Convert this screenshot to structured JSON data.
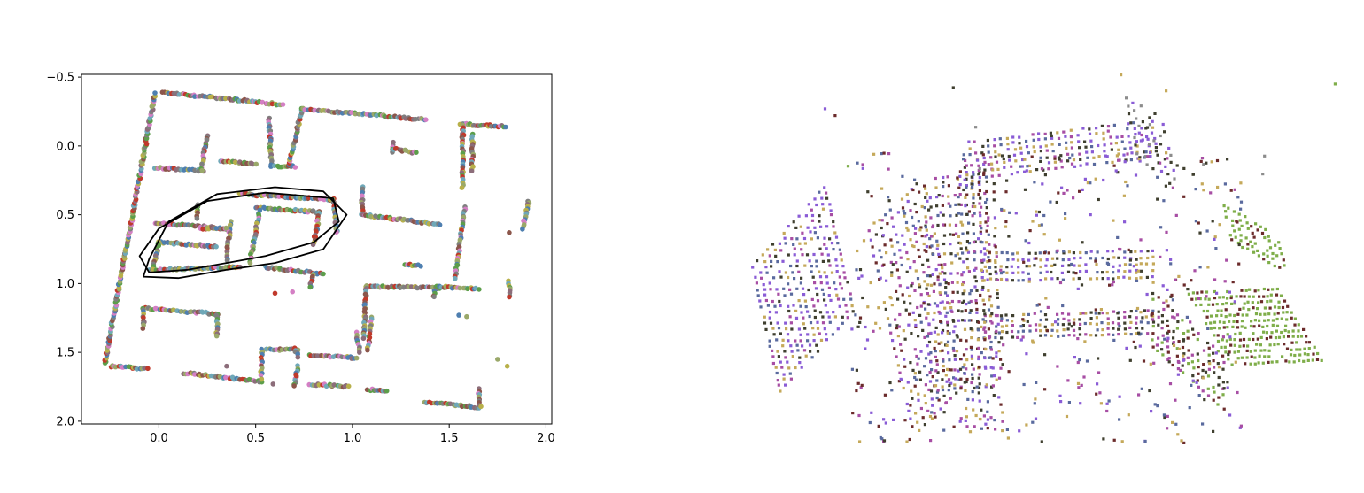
{
  "chart_data": [
    {
      "type": "scatter",
      "title": "",
      "xlabel": "",
      "ylabel": "",
      "xlim": [
        -0.4,
        2.03
      ],
      "ylim": [
        2.02,
        -0.52
      ],
      "y_inverted": true,
      "grid": false,
      "legend": "none",
      "x_ticks": [
        {
          "value": 0.0,
          "label": "0.0"
        },
        {
          "value": 0.5,
          "label": "0.5"
        },
        {
          "value": 1.0,
          "label": "1.0"
        },
        {
          "value": 1.5,
          "label": "1.5"
        },
        {
          "value": 2.0,
          "label": "2.0"
        }
      ],
      "y_ticks": [
        {
          "value": -0.5,
          "label": "−0.5"
        },
        {
          "value": 0.0,
          "label": "0.0"
        },
        {
          "value": 0.5,
          "label": "0.5"
        },
        {
          "value": 1.0,
          "label": "1.0"
        },
        {
          "value": 1.5,
          "label": "1.5"
        },
        {
          "value": 2.0,
          "label": "2.0"
        }
      ],
      "point_colors": [
        "#7f7f7f",
        "#8c6d7a",
        "#6fa8b8",
        "#b8b04a",
        "#d47fc4",
        "#4e7fb0",
        "#5c9e4a",
        "#c0392b",
        "#8c564b",
        "#9aa86a"
      ],
      "wall_segments": [
        [
          [
            -0.28,
            1.58
          ],
          [
            -0.02,
            -0.38
          ]
        ],
        [
          [
            0.02,
            -0.39
          ],
          [
            0.64,
            -0.3
          ]
        ],
        [
          [
            -0.25,
            1.6
          ],
          [
            -0.06,
            1.62
          ]
        ],
        [
          [
            -0.02,
            0.16
          ],
          [
            0.23,
            0.18
          ]
        ],
        [
          [
            0.25,
            -0.08
          ],
          [
            0.22,
            0.18
          ]
        ],
        [
          [
            0.32,
            0.11
          ],
          [
            0.5,
            0.13
          ]
        ],
        [
          [
            0.57,
            -0.2
          ],
          [
            0.58,
            0.15
          ]
        ],
        [
          [
            0.6,
            0.15
          ],
          [
            0.7,
            0.15
          ]
        ],
        [
          [
            0.67,
            0.15
          ],
          [
            0.74,
            -0.27
          ]
        ],
        [
          [
            0.74,
            -0.27
          ],
          [
            1.38,
            -0.19
          ]
        ],
        [
          [
            1.21,
            -0.02
          ],
          [
            1.21,
            0.04
          ]
        ],
        [
          [
            1.21,
            0.02
          ],
          [
            1.33,
            0.05
          ]
        ],
        [
          [
            1.56,
            -0.16
          ],
          [
            1.79,
            -0.14
          ]
        ],
        [
          [
            1.57,
            -0.15
          ],
          [
            1.57,
            0.3
          ]
        ],
        [
          [
            1.62,
            -0.08
          ],
          [
            1.62,
            0.18
          ]
        ],
        [
          [
            1.05,
            0.3
          ],
          [
            1.05,
            0.5
          ]
        ],
        [
          [
            1.05,
            0.5
          ],
          [
            1.45,
            0.57
          ]
        ],
        [
          [
            0.42,
            0.35
          ],
          [
            0.9,
            0.39
          ]
        ],
        [
          [
            0.9,
            0.39
          ],
          [
            0.92,
            0.63
          ]
        ],
        [
          [
            0.2,
            0.42
          ],
          [
            0.2,
            0.53
          ]
        ],
        [
          [
            -0.02,
            0.56
          ],
          [
            0.35,
            0.6
          ]
        ],
        [
          [
            0.5,
            0.45
          ],
          [
            0.83,
            0.48
          ]
        ],
        [
          [
            0.83,
            0.48
          ],
          [
            0.8,
            0.71
          ]
        ],
        [
          [
            0.52,
            0.47
          ],
          [
            0.47,
            0.85
          ]
        ],
        [
          [
            0.37,
            0.55
          ],
          [
            0.35,
            0.83
          ]
        ],
        [
          [
            0.22,
            0.6
          ],
          [
            0.35,
            0.6
          ]
        ],
        [
          [
            0.01,
            0.7
          ],
          [
            0.3,
            0.73
          ]
        ],
        [
          [
            0.0,
            0.7
          ],
          [
            -0.03,
            0.87
          ]
        ],
        [
          [
            -0.05,
            0.9
          ],
          [
            0.42,
            0.88
          ]
        ],
        [
          [
            0.55,
            0.88
          ],
          [
            0.85,
            0.93
          ]
        ],
        [
          [
            0.8,
            0.93
          ],
          [
            0.78,
            1.03
          ]
        ],
        [
          [
            1.27,
            0.86
          ],
          [
            1.35,
            0.87
          ]
        ],
        [
          [
            1.58,
            0.45
          ],
          [
            1.53,
            0.97
          ]
        ],
        [
          [
            1.91,
            0.4
          ],
          [
            1.88,
            0.6
          ]
        ],
        [
          [
            1.07,
            1.02
          ],
          [
            1.45,
            1.03
          ]
        ],
        [
          [
            1.07,
            1.02
          ],
          [
            1.06,
            1.4
          ]
        ],
        [
          [
            1.1,
            1.25
          ],
          [
            1.08,
            1.48
          ]
        ],
        [
          [
            1.43,
            1.04
          ],
          [
            1.42,
            1.1
          ]
        ],
        [
          [
            1.43,
            1.02
          ],
          [
            1.65,
            1.04
          ]
        ],
        [
          [
            1.81,
            0.98
          ],
          [
            1.81,
            1.1
          ]
        ],
        [
          [
            -0.08,
            1.18
          ],
          [
            0.3,
            1.22
          ]
        ],
        [
          [
            -0.08,
            1.18
          ],
          [
            -0.08,
            1.32
          ]
        ],
        [
          [
            0.3,
            1.22
          ],
          [
            0.3,
            1.38
          ]
        ],
        [
          [
            0.13,
            1.65
          ],
          [
            0.53,
            1.71
          ]
        ],
        [
          [
            0.53,
            1.48
          ],
          [
            0.53,
            1.7
          ]
        ],
        [
          [
            0.55,
            1.48
          ],
          [
            0.72,
            1.48
          ]
        ],
        [
          [
            0.7,
            1.47
          ],
          [
            0.72,
            1.53
          ]
        ],
        [
          [
            0.78,
            1.52
          ],
          [
            1.02,
            1.54
          ]
        ],
        [
          [
            0.72,
            1.6
          ],
          [
            0.7,
            1.75
          ]
        ],
        [
          [
            0.78,
            1.73
          ],
          [
            0.98,
            1.75
          ]
        ],
        [
          [
            1.08,
            1.77
          ],
          [
            1.18,
            1.78
          ]
        ],
        [
          [
            1.37,
            1.86
          ],
          [
            1.65,
            1.9
          ]
        ],
        [
          [
            1.65,
            1.77
          ],
          [
            1.66,
            1.9
          ]
        ],
        [
          [
            1.02,
            1.36
          ],
          [
            1.04,
            1.5
          ]
        ]
      ],
      "scattered_points": [
        [
          0.6,
          1.07
        ],
        [
          0.69,
          1.06
        ],
        [
          1.55,
          1.23
        ],
        [
          1.59,
          1.24
        ],
        [
          1.8,
          1.6
        ],
        [
          1.75,
          1.55
        ],
        [
          1.81,
          0.63
        ],
        [
          0.71,
          1.67
        ],
        [
          0.35,
          1.6
        ],
        [
          0.59,
          1.73
        ]
      ],
      "annotation_loops": [
        [
          [
            -0.05,
            0.82
          ],
          [
            0.05,
            0.55
          ],
          [
            0.3,
            0.35
          ],
          [
            0.6,
            0.3
          ],
          [
            0.85,
            0.33
          ],
          [
            0.97,
            0.5
          ],
          [
            0.85,
            0.75
          ],
          [
            0.6,
            0.85
          ],
          [
            0.35,
            0.9
          ],
          [
            0.1,
            0.96
          ],
          [
            -0.08,
            0.95
          ]
        ],
        [
          [
            -0.1,
            0.8
          ],
          [
            0.0,
            0.6
          ],
          [
            0.25,
            0.4
          ],
          [
            0.55,
            0.34
          ],
          [
            0.9,
            0.38
          ],
          [
            0.93,
            0.55
          ],
          [
            0.8,
            0.7
          ],
          [
            0.55,
            0.8
          ],
          [
            0.35,
            0.85
          ],
          [
            0.15,
            0.9
          ],
          [
            -0.05,
            0.92
          ]
        ]
      ]
    },
    {
      "type": "scatter",
      "title": "",
      "grid": false,
      "legend": "none",
      "point_colors": [
        "#8a5cd6",
        "#c5a95a",
        "#3f3f2f",
        "#6b2b2b",
        "#5a6a9e",
        "#a74ea4",
        "#7fae4a",
        "#8c8c8c"
      ]
    }
  ]
}
